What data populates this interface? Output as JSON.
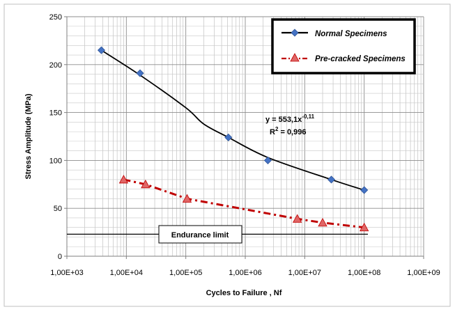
{
  "chart_data": {
    "type": "scatter",
    "xscale": "log",
    "xlim": [
      1000,
      1000000000
    ],
    "ylim": [
      0,
      250
    ],
    "xlabel": "Cycles to Failure , Nf",
    "ylabel": "Stress Amplitude (MPa)",
    "x_ticks": [
      1000,
      10000,
      100000,
      1000000,
      10000000,
      100000000,
      1000000000
    ],
    "x_tick_labels": [
      "1,00E+03",
      "1,00E+04",
      "1,00E+05",
      "1,00E+06",
      "1,00E+07",
      "1,00E+08",
      "1,00E+09"
    ],
    "y_ticks": [
      0,
      50,
      100,
      150,
      200,
      250
    ],
    "y_tick_labels": [
      "0",
      "50",
      "100",
      "150",
      "200",
      "250"
    ],
    "grid": true,
    "legend_position": "top-right",
    "series": [
      {
        "name": "Normal Specimens",
        "marker": "diamond",
        "color": "#4472c4",
        "line_color": "#000000",
        "line_style": "solid",
        "points": [
          [
            3800,
            215
          ],
          [
            17000,
            191
          ],
          [
            520000,
            124
          ],
          [
            2400000,
            100
          ],
          [
            28000000,
            80
          ],
          [
            100000000,
            69
          ]
        ],
        "fit_line": [
          [
            3800,
            215
          ],
          [
            17000,
            189
          ],
          [
            100000,
            155
          ],
          [
            200000,
            138
          ],
          [
            520000,
            124
          ],
          [
            2400000,
            103
          ],
          [
            28000000,
            80
          ],
          [
            100000000,
            69
          ]
        ]
      },
      {
        "name": "Pre-cracked Specimens",
        "marker": "triangle",
        "color": "#e06666",
        "line_color": "#c00000",
        "line_style": "dash-dot",
        "points": [
          [
            9000,
            80
          ],
          [
            21000,
            75
          ],
          [
            105000,
            60
          ],
          [
            7500000,
            39
          ],
          [
            20000000,
            35
          ],
          [
            100000000,
            30
          ]
        ]
      }
    ],
    "annotations": {
      "equation": "y = 553,1x",
      "equation_exponent": "-0,11",
      "r2_label": "R",
      "r2_sup": "2",
      "r2_value": " = 0,996",
      "endurance_label": "Endurance limit",
      "endurance_value": 23
    }
  }
}
